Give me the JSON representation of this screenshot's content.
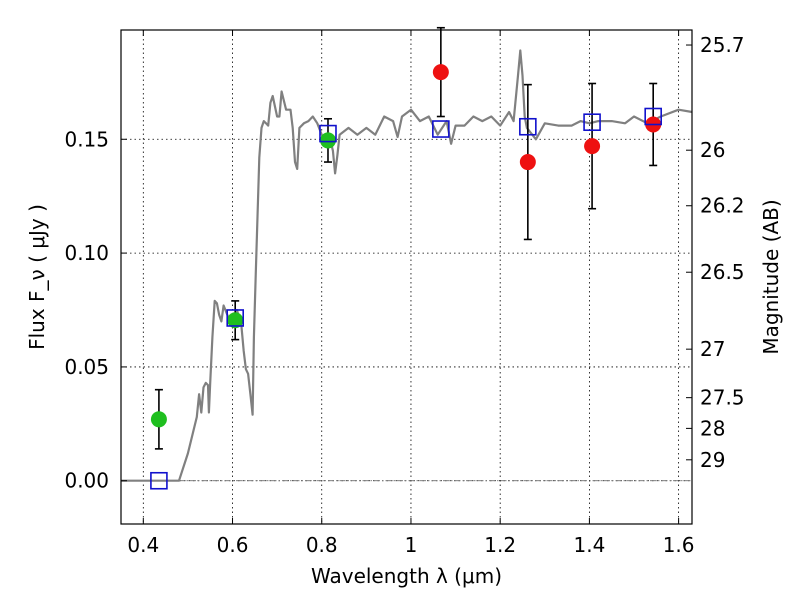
{
  "chart_data": {
    "type": "scatter",
    "xlabel": "Wavelength  λ (μm)",
    "ylabel_left": "Flux  F_ν  ( μJy )",
    "ylabel_right": "Magnitude (AB)",
    "xlim": [
      0.35,
      1.63
    ],
    "ylim": [
      -0.019,
      0.198
    ],
    "x_ticks": [
      0.4,
      0.6,
      0.8,
      1.0,
      1.2,
      1.4,
      1.6
    ],
    "x_tick_labels": [
      "0.4",
      "0.6",
      "0.8",
      "1",
      "1.2",
      "1.4",
      "1.6"
    ],
    "y_ticks": [
      0.0,
      0.05,
      0.1,
      0.15
    ],
    "y_tick_labels": [
      "0.00",
      "0.05",
      "0.10",
      "0.15"
    ],
    "right_ticks": [
      {
        "label": "25.7",
        "flux": 0.1914
      },
      {
        "label": "26",
        "flux": 0.1452
      },
      {
        "label": "26.2",
        "flux": 0.1208
      },
      {
        "label": "26.5",
        "flux": 0.0916
      },
      {
        "label": "27",
        "flux": 0.0578
      },
      {
        "label": "27.5",
        "flux": 0.0365
      },
      {
        "label": "28",
        "flux": 0.023
      },
      {
        "label": "29",
        "flux": 0.0092
      }
    ],
    "grid": true,
    "series": [
      {
        "marker": "circle",
        "color": "#1fbf1f",
        "points": [
          {
            "x": 0.435,
            "y": 0.027,
            "err": 0.013
          },
          {
            "x": 0.606,
            "y": 0.0705,
            "err": 0.0085
          },
          {
            "x": 0.814,
            "y": 0.1495,
            "err": 0.0095
          }
        ]
      },
      {
        "marker": "circle",
        "color": "#ee1111",
        "points": [
          {
            "x": 1.067,
            "y": 0.1795,
            "err": 0.0195
          },
          {
            "x": 1.262,
            "y": 0.14,
            "err": 0.034
          },
          {
            "x": 1.406,
            "y": 0.147,
            "err": 0.0275
          },
          {
            "x": 1.543,
            "y": 0.1565,
            "err": 0.018
          }
        ]
      },
      {
        "marker": "open-square",
        "color": "#1111cc",
        "points": [
          {
            "x": 0.435,
            "y": 0.0
          },
          {
            "x": 0.606,
            "y": 0.0715
          },
          {
            "x": 0.814,
            "y": 0.1525
          },
          {
            "x": 1.067,
            "y": 0.1545
          },
          {
            "x": 1.262,
            "y": 0.1555
          },
          {
            "x": 1.406,
            "y": 0.1575
          },
          {
            "x": 1.543,
            "y": 0.16
          }
        ]
      }
    ],
    "model_sed": {
      "color": "#808080",
      "points": [
        [
          0.35,
          0.0
        ],
        [
          0.48,
          0.0
        ],
        [
          0.5,
          0.012
        ],
        [
          0.52,
          0.028
        ],
        [
          0.525,
          0.038
        ],
        [
          0.53,
          0.03
        ],
        [
          0.535,
          0.041
        ],
        [
          0.54,
          0.043
        ],
        [
          0.545,
          0.042
        ],
        [
          0.547,
          0.03
        ],
        [
          0.55,
          0.043
        ],
        [
          0.555,
          0.063
        ],
        [
          0.56,
          0.079
        ],
        [
          0.565,
          0.078
        ],
        [
          0.57,
          0.073
        ],
        [
          0.575,
          0.07
        ],
        [
          0.58,
          0.077
        ],
        [
          0.59,
          0.072
        ],
        [
          0.6,
          0.068
        ],
        [
          0.61,
          0.075
        ],
        [
          0.62,
          0.068
        ],
        [
          0.625,
          0.057
        ],
        [
          0.63,
          0.049
        ],
        [
          0.635,
          0.047
        ],
        [
          0.64,
          0.038
        ],
        [
          0.645,
          0.029
        ],
        [
          0.648,
          0.063
        ],
        [
          0.652,
          0.09
        ],
        [
          0.66,
          0.142
        ],
        [
          0.665,
          0.155
        ],
        [
          0.67,
          0.158
        ],
        [
          0.675,
          0.157
        ],
        [
          0.68,
          0.156
        ],
        [
          0.685,
          0.166
        ],
        [
          0.69,
          0.169
        ],
        [
          0.7,
          0.16
        ],
        [
          0.705,
          0.16
        ],
        [
          0.71,
          0.171
        ],
        [
          0.72,
          0.163
        ],
        [
          0.73,
          0.163
        ],
        [
          0.735,
          0.155
        ],
        [
          0.74,
          0.14
        ],
        [
          0.745,
          0.137
        ],
        [
          0.75,
          0.155
        ],
        [
          0.76,
          0.157
        ],
        [
          0.77,
          0.158
        ],
        [
          0.78,
          0.16
        ],
        [
          0.79,
          0.157
        ],
        [
          0.8,
          0.152
        ],
        [
          0.81,
          0.149
        ],
        [
          0.82,
          0.149
        ],
        [
          0.825,
          0.145
        ],
        [
          0.83,
          0.135
        ],
        [
          0.835,
          0.143
        ],
        [
          0.84,
          0.152
        ],
        [
          0.86,
          0.155
        ],
        [
          0.88,
          0.152
        ],
        [
          0.9,
          0.155
        ],
        [
          0.92,
          0.152
        ],
        [
          0.94,
          0.16
        ],
        [
          0.96,
          0.158
        ],
        [
          0.97,
          0.151
        ],
        [
          0.98,
          0.16
        ],
        [
          1.0,
          0.163
        ],
        [
          1.02,
          0.158
        ],
        [
          1.04,
          0.16
        ],
        [
          1.06,
          0.152
        ],
        [
          1.08,
          0.158
        ],
        [
          1.09,
          0.148
        ],
        [
          1.1,
          0.156
        ],
        [
          1.12,
          0.156
        ],
        [
          1.14,
          0.16
        ],
        [
          1.16,
          0.158
        ],
        [
          1.18,
          0.16
        ],
        [
          1.2,
          0.156
        ],
        [
          1.22,
          0.162
        ],
        [
          1.23,
          0.158
        ],
        [
          1.24,
          0.178
        ],
        [
          1.245,
          0.189
        ],
        [
          1.25,
          0.178
        ],
        [
          1.255,
          0.16
        ],
        [
          1.26,
          0.155
        ],
        [
          1.28,
          0.15
        ],
        [
          1.3,
          0.157
        ],
        [
          1.33,
          0.156
        ],
        [
          1.36,
          0.156
        ],
        [
          1.38,
          0.158
        ],
        [
          1.4,
          0.157
        ],
        [
          1.42,
          0.158
        ],
        [
          1.45,
          0.158
        ],
        [
          1.48,
          0.157
        ],
        [
          1.5,
          0.16
        ],
        [
          1.53,
          0.157
        ],
        [
          1.56,
          0.16
        ],
        [
          1.6,
          0.163
        ],
        [
          1.63,
          0.162
        ]
      ]
    },
    "zero_line": 0.0
  }
}
